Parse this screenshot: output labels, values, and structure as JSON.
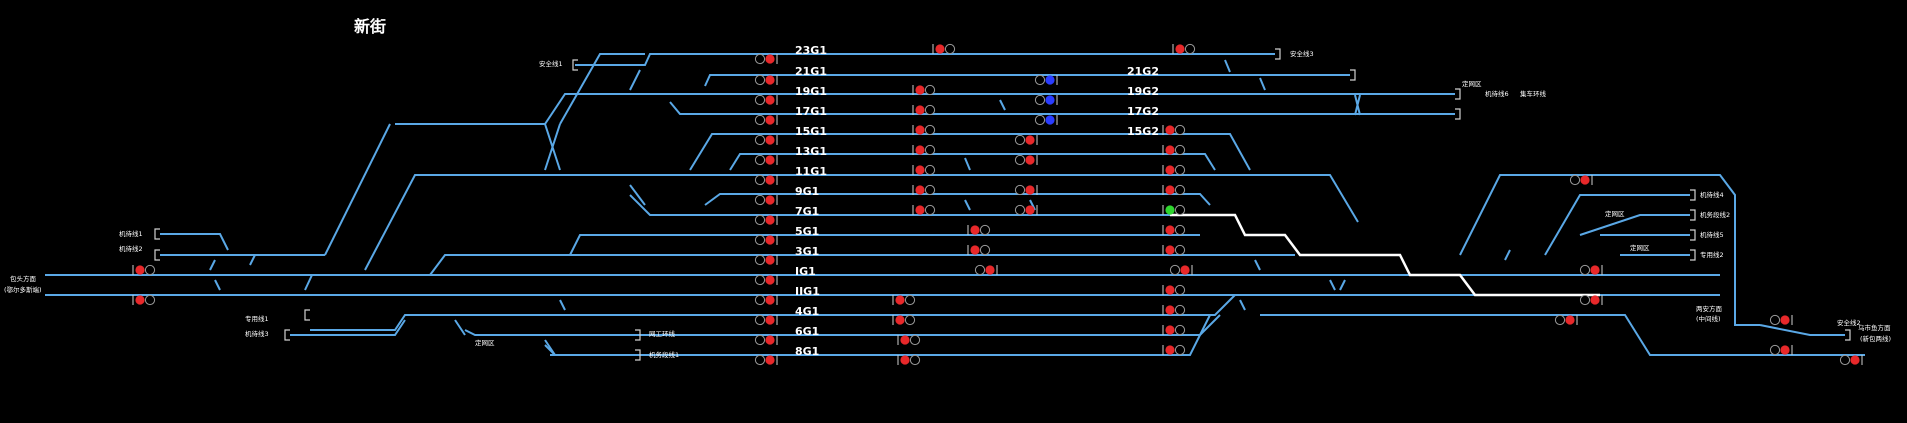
{
  "title": "新街",
  "colors": {
    "track": "#5aa8e6",
    "route": "#ffffff",
    "signal_red": "#e8282a",
    "signal_blue": "#2a3cff",
    "signal_green": "#2fd62f",
    "background": "#000000"
  },
  "track_labels": [
    "23G1",
    "21G1",
    "19G1",
    "17G1",
    "15G1",
    "13G1",
    "11G1",
    "9G1",
    "7G1",
    "5G1",
    "3G1",
    "IG1",
    "IIG1",
    "4G1",
    "6G1",
    "8G1"
  ],
  "track_labels_2": [
    "21G2",
    "19G2",
    "17G2",
    "15G2"
  ],
  "side_labels": {
    "anquan1": "安全线1",
    "anquan3": "安全线3",
    "dingwang1": "定网区",
    "jiyou6": "机待线6",
    "lianche": "集车环线",
    "jiyou1": "机待线1",
    "jiyou2": "机待线2",
    "baotou": "包头方面",
    "eerduosi": "(鄂尔多斯端)",
    "zhuanyong1": "专用线1",
    "jiyou3": "机待线3",
    "dingwang2": "定网区",
    "wanggong": "网工环线",
    "jiwu1": "机务段线1",
    "jiyou4": "机待线4",
    "dingwang3": "定网区",
    "jiwu2": "机务段线2",
    "jiyou5": "机待线5",
    "dingwang4": "定网区",
    "zhuanyong2": "专用线2",
    "liangan": "两安方面",
    "liangan_sub": "(中间线)",
    "anquan2": "安全线2",
    "wuhai": "乌市鱼方面",
    "wuhai_sub": "(新包两线)"
  }
}
